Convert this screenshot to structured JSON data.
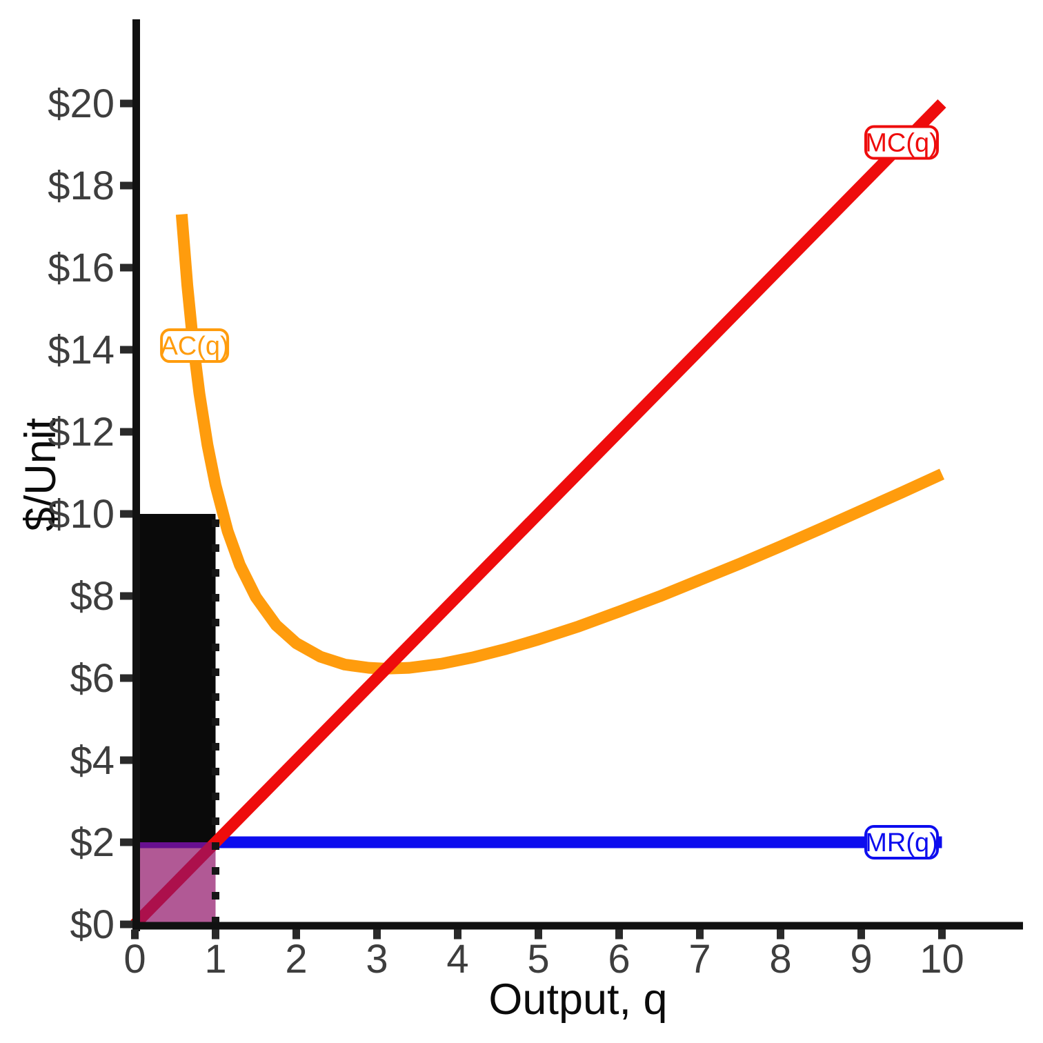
{
  "chart_data": {
    "type": "line",
    "title": "",
    "xlabel": "Output, q",
    "ylabel": "$/Unit",
    "xlim": [
      0,
      11
    ],
    "ylim": [
      0,
      21.8
    ],
    "grid": false,
    "x_ticks": {
      "values": [
        0,
        1,
        2,
        3,
        4,
        5,
        6,
        7,
        8,
        9,
        10
      ],
      "labels": [
        "0",
        "1",
        "2",
        "3",
        "4",
        "5",
        "6",
        "7",
        "8",
        "9",
        "10"
      ]
    },
    "y_ticks": {
      "values": [
        0,
        2,
        4,
        6,
        8,
        10,
        12,
        14,
        16,
        18,
        20
      ],
      "labels": [
        "$0",
        "$2",
        "$4",
        "$6",
        "$8",
        "$10",
        "$12",
        "$14",
        "$16",
        "$18",
        "$20"
      ]
    },
    "series": [
      {
        "name": "MR(q)",
        "color": "#0D0DEE",
        "points": [
          [
            0,
            2
          ],
          [
            10,
            2
          ]
        ],
        "label": {
          "text": "MR(q)",
          "x": 9.5,
          "y": 2.0
        }
      },
      {
        "name": "AC(q)",
        "color": "#FF9C0D",
        "points": [
          [
            0.58,
            17.3
          ],
          [
            0.65,
            15.57
          ],
          [
            0.72,
            14.19
          ],
          [
            0.8,
            12.93
          ],
          [
            0.9,
            11.68
          ],
          [
            1,
            10.7
          ],
          [
            1.15,
            9.58
          ],
          [
            1.3,
            8.76
          ],
          [
            1.5,
            7.97
          ],
          [
            1.75,
            7.29
          ],
          [
            2,
            6.85
          ],
          [
            2.3,
            6.52
          ],
          [
            2.6,
            6.33
          ],
          [
            2.9,
            6.25
          ],
          [
            3.11,
            6.23
          ],
          [
            3.4,
            6.25
          ],
          [
            3.8,
            6.35
          ],
          [
            4.2,
            6.51
          ],
          [
            4.6,
            6.71
          ],
          [
            5,
            6.94
          ],
          [
            5.5,
            7.26
          ],
          [
            6,
            7.62
          ],
          [
            6.5,
            7.99
          ],
          [
            7,
            8.39
          ],
          [
            7.5,
            8.79
          ],
          [
            8,
            9.21
          ],
          [
            8.5,
            9.64
          ],
          [
            9,
            10.08
          ],
          [
            9.5,
            10.52
          ],
          [
            10,
            10.97
          ]
        ],
        "label": {
          "text": "AC(q)",
          "x": 0.74,
          "y": 14.1
        }
      },
      {
        "name": "MC(q)",
        "color": "#EE0C0C",
        "points": [
          [
            0,
            0
          ],
          [
            10,
            20
          ]
        ],
        "label": {
          "text": "MC(q)",
          "x": 9.5,
          "y": 19.05
        }
      }
    ],
    "regions": [
      {
        "name": "loss-rectangle",
        "x0": 0,
        "x1": 1,
        "y0": 2,
        "y1": 10,
        "color": "#0A0A0A",
        "opacity": 1
      },
      {
        "name": "revenue-rectangle",
        "x0": 0,
        "x1": 1,
        "y0": 0,
        "y1": 2,
        "color": "#901368",
        "opacity": 0.7
      }
    ],
    "reference_lines": [
      {
        "name": "quantity-dotted-line",
        "x": 1,
        "y0": 0,
        "y1": 10,
        "color": "#161616",
        "style": "dotted"
      }
    ]
  }
}
